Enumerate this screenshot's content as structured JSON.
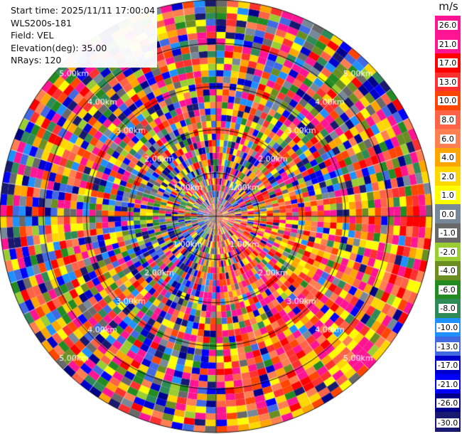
{
  "info": {
    "start_time": "Start time: 2025/11/11 17:00:04",
    "instrument": "WLS200s-181",
    "field": "Field: VEL",
    "elevation": "Elevation(deg): 35.00",
    "nrays": "NRays: 120"
  },
  "chart_data": {
    "type": "heatmap",
    "projection": "polar-ppi",
    "field": "VEL",
    "nrays": 120,
    "max_range_km": 5.0,
    "range_ring_labels": [
      "1.00km",
      "2.00km",
      "3.00km",
      "4.00km",
      "5.00km"
    ],
    "colorbar": {
      "unit": "m/s",
      "ticks": [
        "26.0",
        "21.0",
        "17.0",
        "13.0",
        "10.0",
        "8.0",
        "6.0",
        "4.0",
        "2.0",
        "1.0",
        "0.0",
        "-1.0",
        "-2.0",
        "-4.0",
        "-6.0",
        "-8.0",
        "-10.0",
        "-13.0",
        "-17.0",
        "-21.0",
        "-26.0",
        "-30.0"
      ],
      "colors": [
        "#ff1493",
        "#ff1493",
        "#ff0000",
        "#ff3030",
        "#ff4500",
        "#ff6347",
        "#ff7f50",
        "#ffa500",
        "#ffd700",
        "#ffff00",
        "#778899",
        "#696969",
        "#9acd32",
        "#6b8e23",
        "#228b22",
        "#2e8b57",
        "#1e90ff",
        "#4169e1",
        "#0000cd",
        "#0000ff",
        "#00008b",
        "#191970"
      ]
    }
  }
}
